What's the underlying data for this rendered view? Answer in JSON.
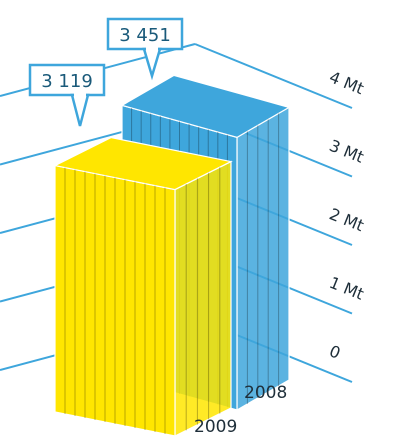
{
  "chart_data": {
    "type": "bar",
    "categories": [
      "2009",
      "2008"
    ],
    "series": [
      {
        "values": [
          3119,
          3451
        ]
      }
    ],
    "data_labels": [
      "3 119",
      "3 451"
    ],
    "ytick_labels": [
      "0",
      "1 Mt",
      "2 Mt",
      "3 Mt",
      "4 Mt"
    ],
    "ylim": [
      0,
      4000
    ],
    "colors": {
      "bar_2009": "#FFE600",
      "bar_2008": "#3EA6DC",
      "grid": "#3EA6DC",
      "callout_stroke": "#3EA6DC"
    }
  }
}
